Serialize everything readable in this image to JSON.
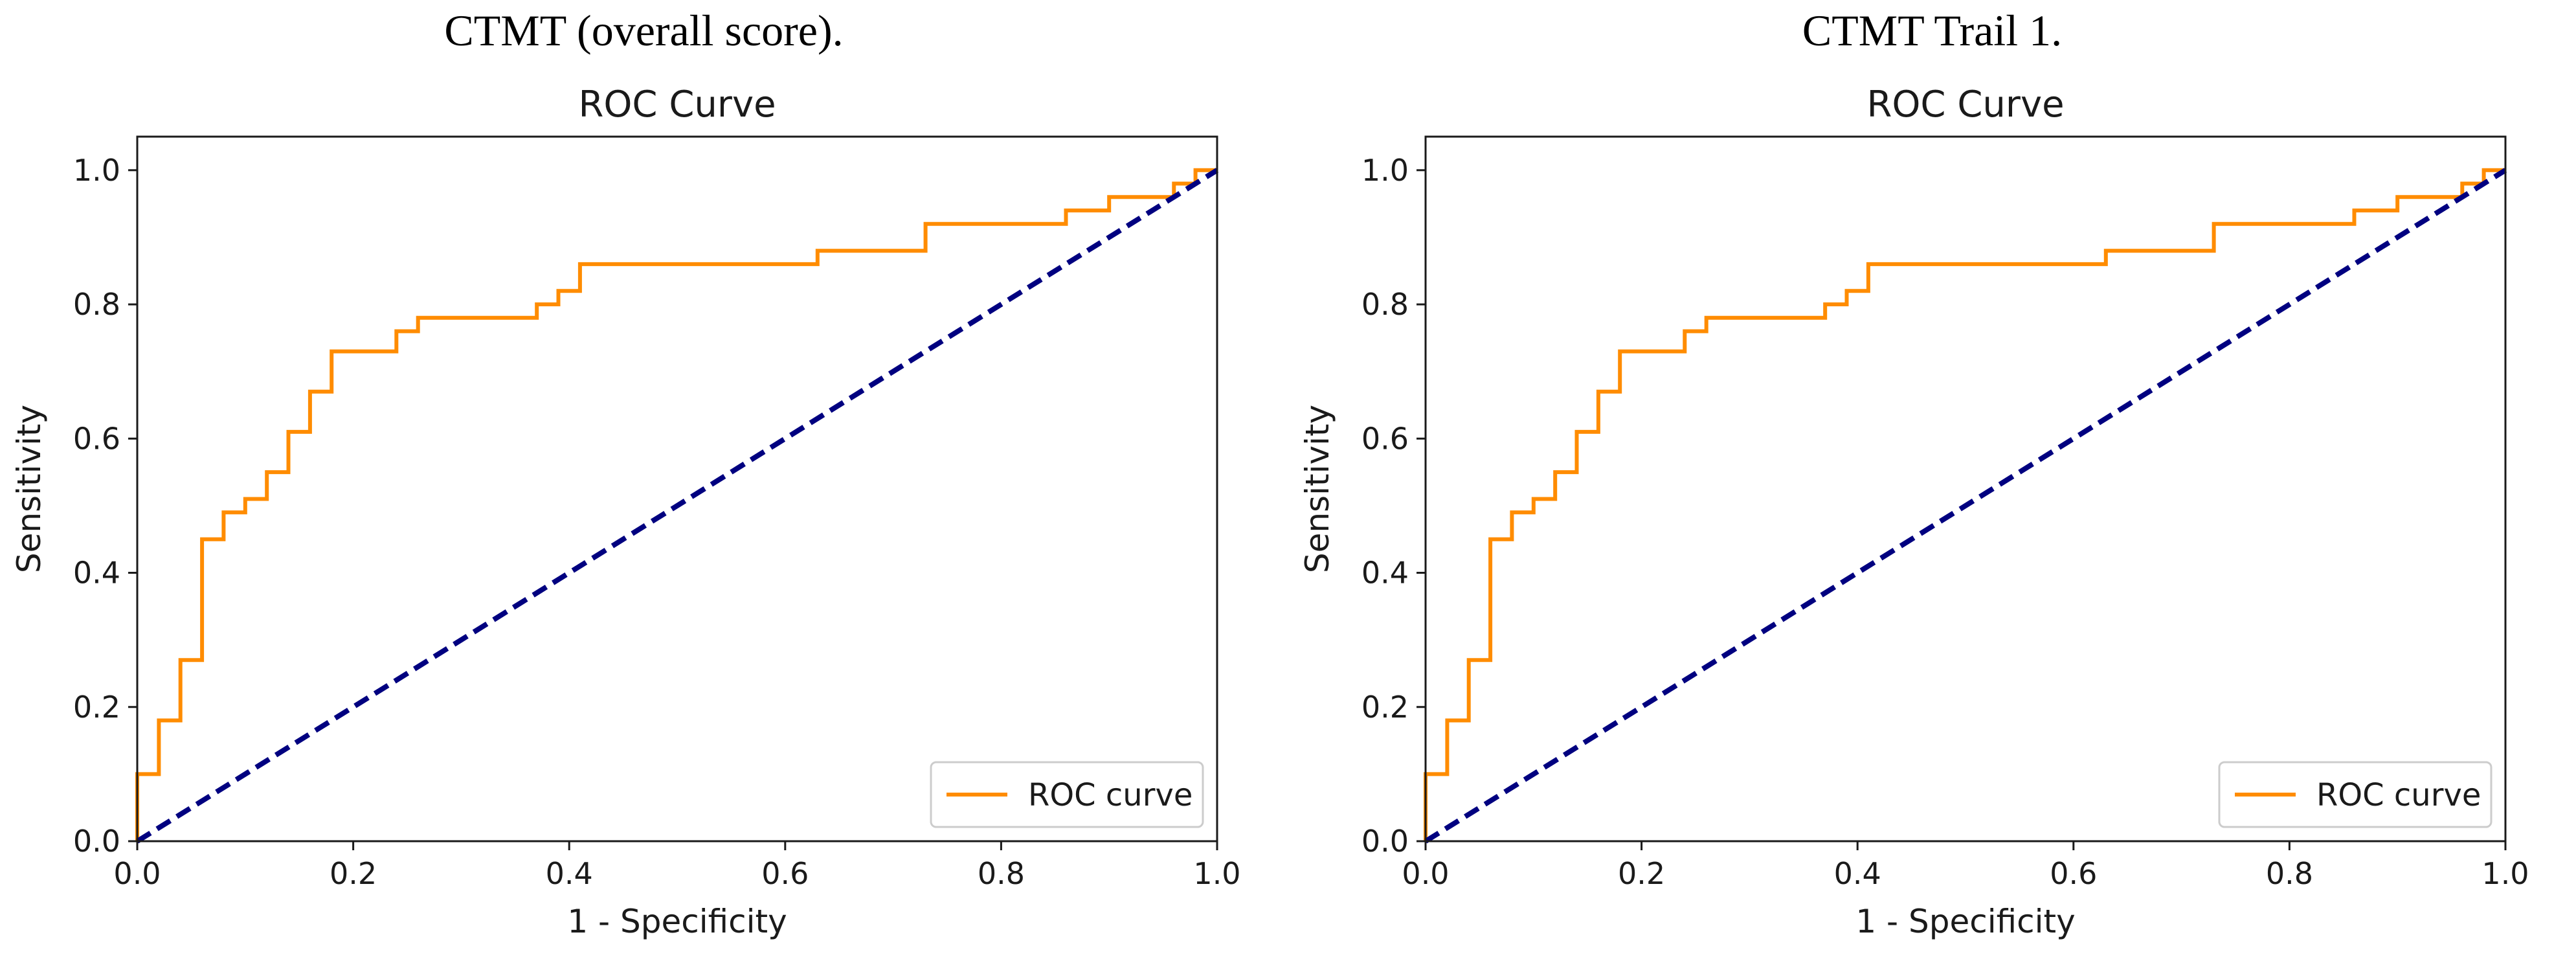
{
  "colors": {
    "roc": "#ff8c00",
    "diagonal": "#000080",
    "axes": "#1a1a1a",
    "legend_border": "#cccccc"
  },
  "chart_data": [
    {
      "type": "line",
      "panel_caption": "CTMT (overall score).",
      "title": "ROC Curve",
      "xlabel": "1 - Specificity",
      "ylabel": "Sensitivity",
      "xlim": [
        0.0,
        1.0
      ],
      "ylim": [
        0.0,
        1.05
      ],
      "xticks": [
        "0.0",
        "0.2",
        "0.4",
        "0.6",
        "0.8",
        "1.0"
      ],
      "yticks": [
        "0.0",
        "0.2",
        "0.4",
        "0.6",
        "0.8",
        "1.0"
      ],
      "grid": false,
      "legend_position": "lower-right",
      "series": [
        {
          "name": "ROC curve",
          "style": "solid",
          "color": "#ff8c00",
          "x": [
            0.0,
            0.0,
            0.02,
            0.02,
            0.04,
            0.04,
            0.06,
            0.06,
            0.08,
            0.08,
            0.1,
            0.1,
            0.12,
            0.12,
            0.14,
            0.14,
            0.16,
            0.16,
            0.18,
            0.18,
            0.24,
            0.24,
            0.26,
            0.26,
            0.37,
            0.37,
            0.39,
            0.39,
            0.41,
            0.41,
            0.63,
            0.63,
            0.73,
            0.73,
            0.86,
            0.86,
            0.9,
            0.9,
            0.96,
            0.96,
            0.98,
            0.98,
            1.0
          ],
          "y": [
            0.0,
            0.1,
            0.1,
            0.18,
            0.18,
            0.27,
            0.27,
            0.45,
            0.45,
            0.49,
            0.49,
            0.51,
            0.51,
            0.55,
            0.55,
            0.61,
            0.61,
            0.67,
            0.67,
            0.73,
            0.73,
            0.76,
            0.76,
            0.78,
            0.78,
            0.8,
            0.8,
            0.82,
            0.82,
            0.86,
            0.86,
            0.88,
            0.88,
            0.92,
            0.92,
            0.94,
            0.94,
            0.96,
            0.96,
            0.98,
            0.98,
            1.0,
            1.0
          ]
        },
        {
          "style": "dashed",
          "color": "#000080",
          "x": [
            0.0,
            1.0
          ],
          "y": [
            0.0,
            1.0
          ]
        }
      ]
    },
    {
      "type": "line",
      "panel_caption": "CTMT Trail 1.",
      "title": "ROC Curve",
      "xlabel": "1 - Specificity",
      "ylabel": "Sensitivity",
      "xlim": [
        0.0,
        1.0
      ],
      "ylim": [
        0.0,
        1.05
      ],
      "xticks": [
        "0.0",
        "0.2",
        "0.4",
        "0.6",
        "0.8",
        "1.0"
      ],
      "yticks": [
        "0.0",
        "0.2",
        "0.4",
        "0.6",
        "0.8",
        "1.0"
      ],
      "grid": false,
      "legend_position": "lower-right",
      "series": [
        {
          "name": "ROC curve",
          "style": "solid",
          "color": "#ff8c00",
          "x": [
            0.0,
            0.0,
            0.02,
            0.02,
            0.04,
            0.04,
            0.06,
            0.06,
            0.08,
            0.08,
            0.1,
            0.1,
            0.12,
            0.12,
            0.14,
            0.14,
            0.16,
            0.16,
            0.18,
            0.18,
            0.24,
            0.24,
            0.26,
            0.26,
            0.37,
            0.37,
            0.39,
            0.39,
            0.41,
            0.41,
            0.63,
            0.63,
            0.73,
            0.73,
            0.86,
            0.86,
            0.9,
            0.9,
            0.96,
            0.96,
            0.98,
            0.98,
            1.0
          ],
          "y": [
            0.0,
            0.1,
            0.1,
            0.18,
            0.18,
            0.27,
            0.27,
            0.45,
            0.45,
            0.49,
            0.49,
            0.51,
            0.51,
            0.55,
            0.55,
            0.61,
            0.61,
            0.67,
            0.67,
            0.73,
            0.73,
            0.76,
            0.76,
            0.78,
            0.78,
            0.8,
            0.8,
            0.82,
            0.82,
            0.86,
            0.86,
            0.88,
            0.88,
            0.92,
            0.92,
            0.94,
            0.94,
            0.96,
            0.96,
            0.98,
            0.98,
            1.0,
            1.0
          ]
        },
        {
          "style": "dashed",
          "color": "#000080",
          "x": [
            0.0,
            1.0
          ],
          "y": [
            0.0,
            1.0
          ]
        }
      ]
    }
  ]
}
